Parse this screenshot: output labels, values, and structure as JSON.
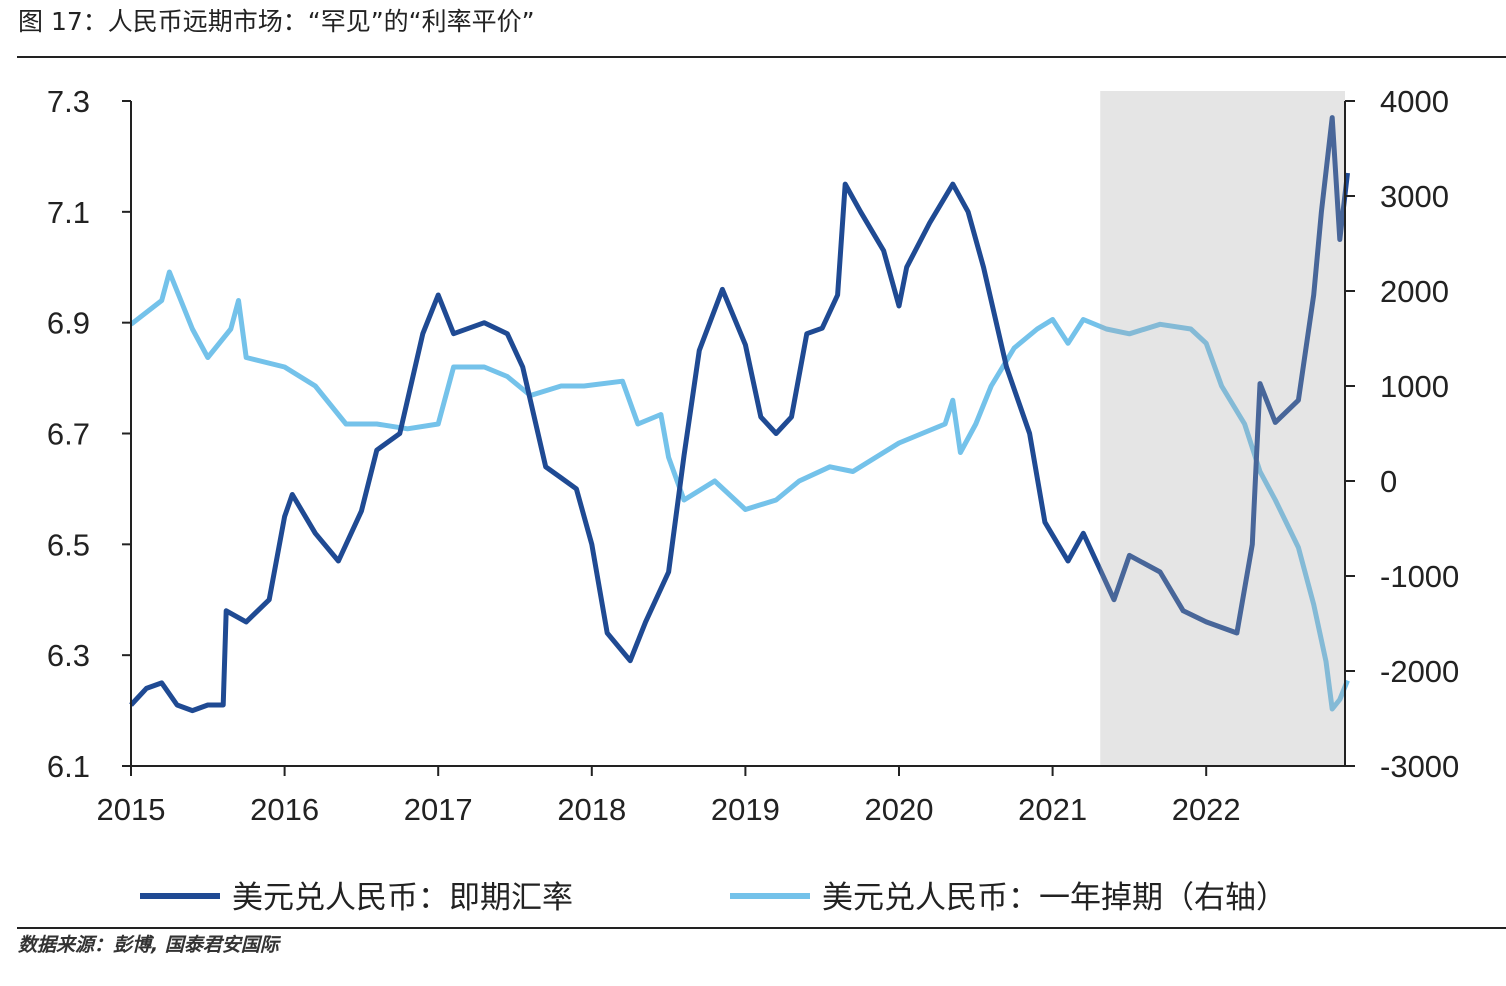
{
  "title": {
    "prefix": "图 17：",
    "number": "17",
    "text": "图 17：人民币远期市场：“罕见”的“利率平价”"
  },
  "source": "数据来源：彭博, 国泰君安国际",
  "chart_data": {
    "type": "line",
    "title": "人民币远期市场：“罕见”的“利率平价”",
    "x_ticks": [
      "2015",
      "2016",
      "2017",
      "2018",
      "2019",
      "2020",
      "2021",
      "2022"
    ],
    "xlim": [
      2015,
      2022.92
    ],
    "y_left": {
      "ylim": [
        6.1,
        7.3
      ],
      "ticks": [
        "7.3",
        "7.1",
        "6.9",
        "6.7",
        "6.5",
        "6.3",
        "6.1"
      ]
    },
    "y_right": {
      "ylim": [
        -3000,
        4000
      ],
      "ticks": [
        "4000",
        "3000",
        "2000",
        "1000",
        "0",
        "-1000",
        "-2000",
        "-3000"
      ]
    },
    "shaded_range": [
      2021.31,
      2022.92
    ],
    "grid": false,
    "legend_position": "bottom",
    "colors": {
      "spot": "#1F4A93",
      "swap": "#74C2EA",
      "shade": "#E6E6E6"
    },
    "series": [
      {
        "name": "美元兑人民币：即期汇率",
        "axis": "left",
        "x": [
          2015.0,
          2015.1,
          2015.2,
          2015.3,
          2015.4,
          2015.5,
          2015.6,
          2015.62,
          2015.75,
          2015.9,
          2016.0,
          2016.05,
          2016.2,
          2016.35,
          2016.5,
          2016.6,
          2016.75,
          2016.9,
          2017.0,
          2017.1,
          2017.3,
          2017.45,
          2017.55,
          2017.7,
          2017.8,
          2017.9,
          2018.0,
          2018.1,
          2018.25,
          2018.35,
          2018.5,
          2018.6,
          2018.7,
          2018.85,
          2019.0,
          2019.1,
          2019.2,
          2019.3,
          2019.4,
          2019.5,
          2019.6,
          2019.65,
          2019.75,
          2019.9,
          2020.0,
          2020.05,
          2020.2,
          2020.35,
          2020.45,
          2020.55,
          2020.7,
          2020.85,
          2020.95,
          2021.1,
          2021.2,
          2021.3,
          2021.4,
          2021.5,
          2021.7,
          2021.85,
          2022.0,
          2022.2,
          2022.3,
          2022.35,
          2022.45,
          2022.6,
          2022.7,
          2022.75,
          2022.82,
          2022.87,
          2022.92
        ],
        "values": [
          6.21,
          6.24,
          6.25,
          6.21,
          6.2,
          6.21,
          6.21,
          6.38,
          6.36,
          6.4,
          6.55,
          6.59,
          6.52,
          6.47,
          6.56,
          6.67,
          6.7,
          6.88,
          6.95,
          6.88,
          6.9,
          6.88,
          6.82,
          6.64,
          6.62,
          6.6,
          6.5,
          6.34,
          6.29,
          6.36,
          6.45,
          6.66,
          6.85,
          6.96,
          6.86,
          6.73,
          6.7,
          6.73,
          6.88,
          6.89,
          6.95,
          7.15,
          7.1,
          7.03,
          6.93,
          7.0,
          7.08,
          7.15,
          7.1,
          7.0,
          6.82,
          6.7,
          6.54,
          6.47,
          6.52,
          6.46,
          6.4,
          6.48,
          6.45,
          6.38,
          6.36,
          6.34,
          6.5,
          6.79,
          6.72,
          6.76,
          6.95,
          7.1,
          7.27,
          7.05,
          7.17
        ]
      },
      {
        "name": "美元兑人民币：一年掉期（右轴）",
        "axis": "right",
        "x": [
          2015.0,
          2015.2,
          2015.25,
          2015.4,
          2015.5,
          2015.65,
          2015.7,
          2015.75,
          2016.0,
          2016.2,
          2016.4,
          2016.6,
          2016.8,
          2017.0,
          2017.1,
          2017.3,
          2017.45,
          2017.6,
          2017.8,
          2017.95,
          2018.2,
          2018.3,
          2018.45,
          2018.5,
          2018.6,
          2018.8,
          2019.0,
          2019.2,
          2019.35,
          2019.55,
          2019.7,
          2019.9,
          2020.0,
          2020.15,
          2020.3,
          2020.35,
          2020.4,
          2020.5,
          2020.6,
          2020.75,
          2020.9,
          2021.0,
          2021.1,
          2021.2,
          2021.35,
          2021.5,
          2021.7,
          2021.9,
          2022.0,
          2022.1,
          2022.25,
          2022.35,
          2022.45,
          2022.6,
          2022.7,
          2022.78,
          2022.82,
          2022.87,
          2022.92
        ],
        "values": [
          1650,
          1900,
          2200,
          1600,
          1300,
          1600,
          1900,
          1300,
          1200,
          1000,
          600,
          600,
          550,
          600,
          1200,
          1200,
          1100,
          900,
          1000,
          1000,
          1050,
          600,
          700,
          250,
          -200,
          0,
          -300,
          -200,
          0,
          150,
          100,
          300,
          400,
          500,
          600,
          850,
          300,
          600,
          1000,
          1400,
          1600,
          1700,
          1450,
          1700,
          1600,
          1550,
          1650,
          1600,
          1450,
          1000,
          600,
          100,
          -200,
          -700,
          -1300,
          -1900,
          -2400,
          -2300,
          -2100
        ]
      }
    ]
  }
}
